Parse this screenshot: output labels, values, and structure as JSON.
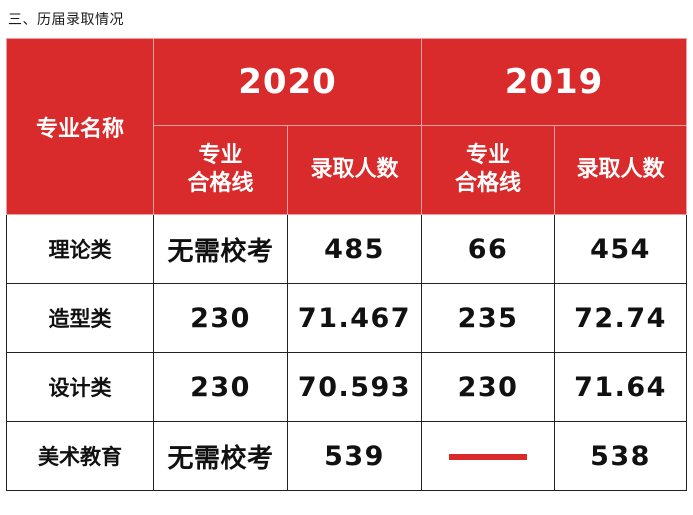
{
  "heading": "三、历届录取情况",
  "table": {
    "name_header": "专业名称",
    "years": [
      "2020",
      "2019"
    ],
    "sub_headers": {
      "line_a": "专业",
      "line_b": "合格线",
      "admit": "录取人数"
    },
    "rows": [
      {
        "name": "理论类",
        "y2020_line": "无需校考",
        "y2020_admit": "485",
        "y2019_line": "66",
        "y2019_admit": "454"
      },
      {
        "name": "造型类",
        "y2020_line": "230",
        "y2020_admit": "71.467",
        "y2019_line": "235",
        "y2019_admit": "72.74"
      },
      {
        "name": "设计类",
        "y2020_line": "230",
        "y2020_admit": "70.593",
        "y2019_line": "230",
        "y2019_admit": "71.64"
      },
      {
        "name": "美术教育",
        "y2020_line": "无需校考",
        "y2020_admit": "539",
        "y2019_line": "",
        "y2019_admit": "538"
      }
    ]
  },
  "colors": {
    "header_red": "#d92b2b",
    "dash_red": "#d92b2b"
  }
}
